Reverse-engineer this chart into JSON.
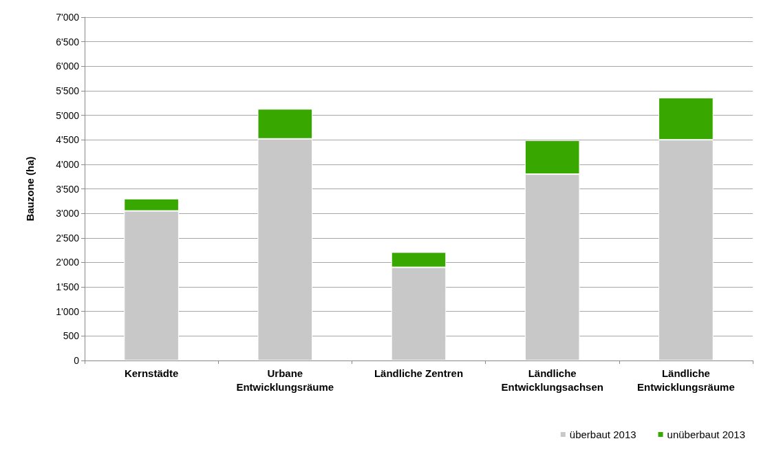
{
  "chart_data": {
    "type": "bar",
    "stacked": true,
    "ylabel": "Bauzone (ha)",
    "categories": [
      "Kernstädte",
      "Urbane\nEntwicklungsräume",
      "Ländliche Zentren",
      "Ländliche\nEntwicklungsachsen",
      "Ländliche\nEntwicklungsräume"
    ],
    "series": [
      {
        "name": "überbaut 2013",
        "color": "#c8c8c8",
        "values": [
          3050,
          4520,
          1900,
          3800,
          4500
        ]
      },
      {
        "name": "unüberbaut 2013",
        "color": "#38a800",
        "values": [
          250,
          610,
          310,
          690,
          860
        ]
      }
    ],
    "ylim": [
      0,
      7000
    ],
    "yticks": [
      0,
      500,
      {
        "value": 1000,
        "label": "1'000"
      },
      {
        "value": 1500,
        "label": "1'500"
      },
      {
        "value": 2000,
        "label": "2'000"
      },
      {
        "value": 2500,
        "label": "2'500"
      },
      {
        "value": 3000,
        "label": "3'000"
      },
      {
        "value": 3500,
        "label": "3'500"
      },
      {
        "value": 4000,
        "label": "4'000"
      },
      {
        "value": 4500,
        "label": "4'500"
      },
      {
        "value": 5000,
        "label": "5'000"
      },
      {
        "value": 5500,
        "label": "5'500"
      },
      {
        "value": 6000,
        "label": "6'000"
      },
      {
        "value": 6500,
        "label": "6'500"
      },
      {
        "value": 7000,
        "label": "7'000"
      }
    ],
    "grid": "y",
    "legend": "bottom right"
  }
}
